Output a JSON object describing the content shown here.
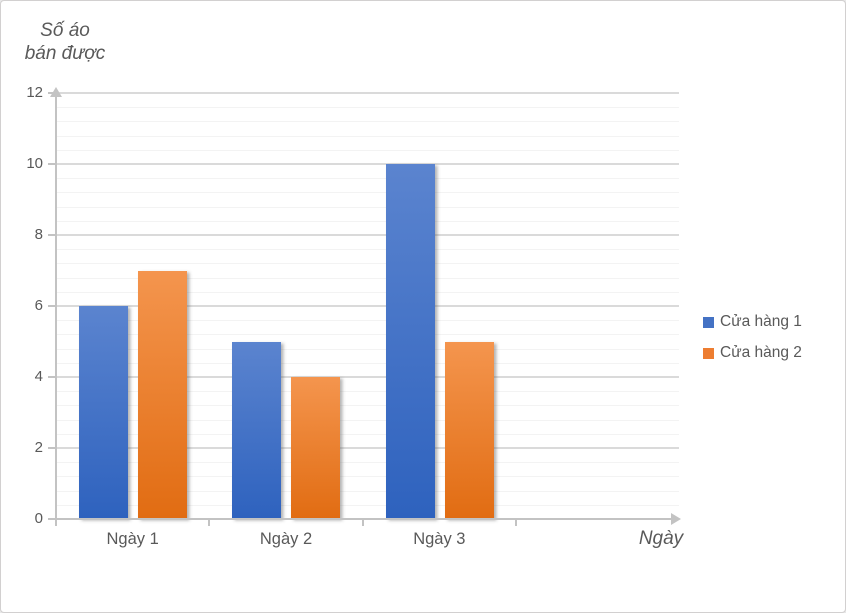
{
  "chart_data": {
    "type": "bar",
    "title": "",
    "y_axis_title_lines": [
      "Số áo",
      "bán được"
    ],
    "x_axis_title": "Ngày",
    "categories": [
      "Ngày 1",
      "Ngày 2",
      "Ngày 3"
    ],
    "series": [
      {
        "name": "Cửa hàng 1",
        "color": "#4472C4",
        "color_top": "#5b84cf",
        "color_bottom": "#2e62be",
        "values": [
          6,
          5,
          10
        ]
      },
      {
        "name": "Cửa hàng 2",
        "color": "#ED7D31",
        "color_top": "#f4954e",
        "color_bottom": "#e16c12",
        "values": [
          7,
          4,
          5
        ]
      }
    ],
    "ylim": [
      0,
      12
    ],
    "y_major_unit": 2,
    "y_minor_unit": 0.4,
    "y_tick_labels": [
      "0",
      "2",
      "4",
      "6",
      "8",
      "10",
      "12"
    ],
    "grid": "major+minor",
    "legend_position": "right"
  },
  "colors": {
    "background": "#ffffff",
    "window_border": "#d2d0d0",
    "major_gridline": "#dadada",
    "minor_gridline": "#f3f3f3",
    "axis_line": "#c3c3c3",
    "text": "#595959"
  }
}
